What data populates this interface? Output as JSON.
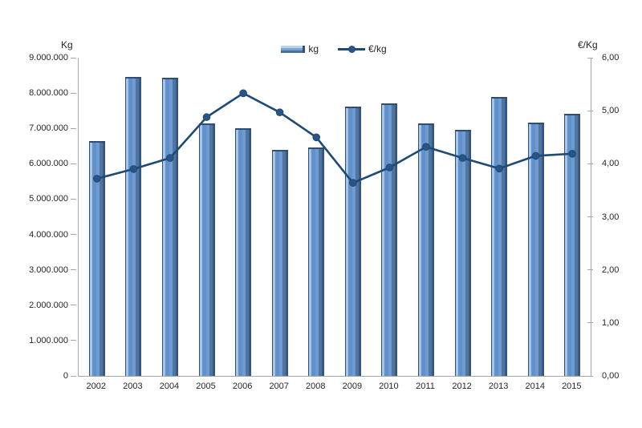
{
  "chart_data": {
    "type": "bar",
    "subtype": "combo-bar-line",
    "categories": [
      "2002",
      "2003",
      "2004",
      "2005",
      "2006",
      "2007",
      "2008",
      "2009",
      "2010",
      "2011",
      "2012",
      "2013",
      "2014",
      "2015"
    ],
    "series": [
      {
        "name": "kg",
        "type": "bar",
        "axis": "left",
        "color": "#6191ca",
        "values": [
          6650000,
          8450000,
          8430000,
          7150000,
          7000000,
          6400000,
          6450000,
          7620000,
          7700000,
          7150000,
          6970000,
          7890000,
          7170000,
          7420000
        ]
      },
      {
        "name": "€/kg",
        "type": "line",
        "axis": "right",
        "color": "#1d4a77",
        "values": [
          3.72,
          3.9,
          4.11,
          4.88,
          5.33,
          4.97,
          4.5,
          3.64,
          3.93,
          4.32,
          4.11,
          3.91,
          4.15,
          4.19
        ]
      }
    ],
    "left_axis": {
      "label": "Kg",
      "min": 0,
      "max": 9000000,
      "step": 1000000,
      "ticks": [
        "0",
        "1.000.000",
        "2.000.000",
        "3.000.000",
        "4.000.000",
        "5.000.000",
        "6.000.000",
        "7.000.000",
        "8.000.000",
        "9.000.000"
      ]
    },
    "right_axis": {
      "label": "€/Kg",
      "min": 0,
      "max": 6,
      "step": 1,
      "ticks": [
        "0,00",
        "1,00",
        "2,00",
        "3,00",
        "4,00",
        "5,00",
        "6,00"
      ]
    },
    "legend": [
      {
        "label": "kg",
        "marker": "bar-swatch"
      },
      {
        "label": "€/kg",
        "marker": "line-with-dot"
      }
    ],
    "grid": false,
    "legend_position": "top-center",
    "colors": {
      "bar_fill": "#6191ca",
      "bar_highlight": "#a6c5e7",
      "bar_shadow": "#3a5a86",
      "bar_outline": "#2f517c",
      "line": "#1d4a77",
      "axis_line": "#a6a6a6",
      "text": "#262626"
    }
  }
}
